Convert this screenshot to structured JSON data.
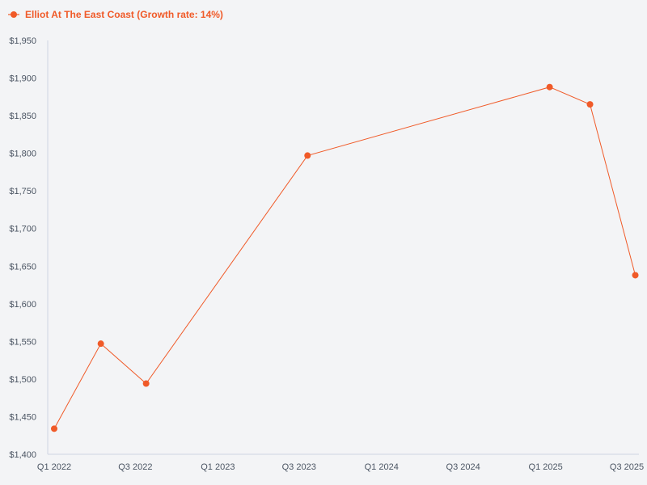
{
  "chart_data": {
    "type": "line",
    "title": "",
    "xlabel": "",
    "ylabel": "",
    "legend_position": "top-left",
    "grid": false,
    "series": [
      {
        "name": "Elliot At The East Coast (Growth rate: 14%)",
        "color": "#f05a28",
        "points": [
          {
            "x": "2022-01-01",
            "y": 1434
          },
          {
            "x": "2022-04-15",
            "y": 1547
          },
          {
            "x": "2022-07-25",
            "y": 1494
          },
          {
            "x": "2023-07-20",
            "y": 1797
          },
          {
            "x": "2025-01-10",
            "y": 1888
          },
          {
            "x": "2025-04-10",
            "y": 1865
          },
          {
            "x": "2025-07-20",
            "y": 1638
          }
        ]
      }
    ],
    "xlim": [
      "2022-01-01",
      "2025-07-01"
    ],
    "x_ticks": [
      {
        "date": "2022-01-01",
        "label": "Q1 2022"
      },
      {
        "date": "2022-07-01",
        "label": "Q3 2022"
      },
      {
        "date": "2023-01-01",
        "label": "Q1 2023"
      },
      {
        "date": "2023-07-01",
        "label": "Q3 2023"
      },
      {
        "date": "2024-01-01",
        "label": "Q1 2024"
      },
      {
        "date": "2024-07-01",
        "label": "Q3 2024"
      },
      {
        "date": "2025-01-01",
        "label": "Q1 2025"
      },
      {
        "date": "2025-07-01",
        "label": "Q3 2025"
      }
    ],
    "ylim": [
      1400,
      1950
    ],
    "y_ticks": [
      {
        "value": 1400,
        "label": "$1,400"
      },
      {
        "value": 1450,
        "label": "$1,450"
      },
      {
        "value": 1500,
        "label": "$1,500"
      },
      {
        "value": 1550,
        "label": "$1,550"
      },
      {
        "value": 1600,
        "label": "$1,600"
      },
      {
        "value": 1650,
        "label": "$1,650"
      },
      {
        "value": 1700,
        "label": "$1,700"
      },
      {
        "value": 1750,
        "label": "$1,750"
      },
      {
        "value": 1800,
        "label": "$1,800"
      },
      {
        "value": 1850,
        "label": "$1,850"
      },
      {
        "value": 1900,
        "label": "$1,900"
      },
      {
        "value": 1950,
        "label": "$1,950"
      }
    ]
  },
  "colors": {
    "background": "#f3f4f6",
    "axis": "#cfd3e3",
    "tick_text": "#4b5563"
  }
}
